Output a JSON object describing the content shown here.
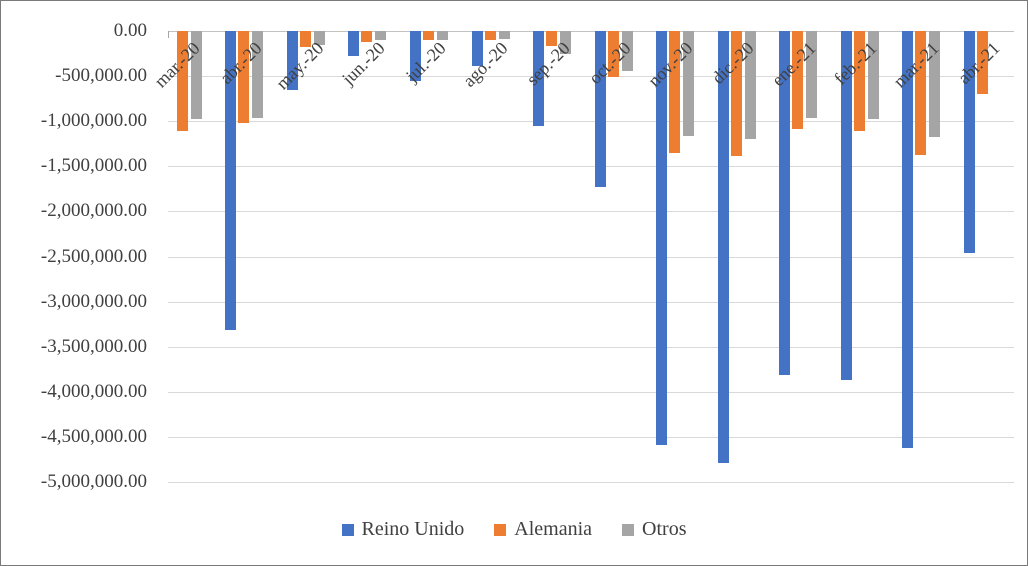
{
  "chart_data": {
    "type": "bar",
    "orientation": "vertical-negative",
    "categories": [
      "mar.-20",
      "abr.-20",
      "may.-20",
      "jun.-20",
      "jul.-20",
      "ago.-20",
      "sep.-20",
      "oct.-20",
      "nov.-20",
      "dic.-20",
      "ene.-21",
      "feb.-21",
      "mar.-21",
      "abr.-21"
    ],
    "series": [
      {
        "name": "Reino Unido",
        "color": "#4472C4",
        "values": [
          0,
          -3320000,
          -650000,
          -280000,
          -550000,
          -390000,
          -1050000,
          -1730000,
          -4590000,
          -4790000,
          -3810000,
          -3870000,
          -4620000,
          -2460000
        ]
      },
      {
        "name": "Alemania",
        "color": "#ED7D31",
        "values": [
          -1110000,
          -1020000,
          -180000,
          -120000,
          -105000,
          -100000,
          -170000,
          -510000,
          -1350000,
          -1390000,
          -1090000,
          -1110000,
          -1370000,
          -700000
        ]
      },
      {
        "name": "Otros",
        "color": "#A5A5A5",
        "values": [
          -980000,
          -960000,
          -150000,
          -105000,
          -95000,
          -90000,
          -260000,
          -440000,
          -1160000,
          -1200000,
          -960000,
          -980000,
          -1180000,
          0
        ]
      }
    ],
    "y_axis": {
      "min": -5000000,
      "max": 0,
      "step": 500000,
      "labels": [
        "0.00",
        "-500,000.00",
        "-1,000,000.00",
        "-1,500,000.00",
        "-2,000,000.00",
        "-2,500,000.00",
        "-3,000,000.00",
        "-3,500,000.00",
        "-4,000,000.00",
        "-4,500,000.00",
        "-5,000,000.00"
      ]
    },
    "legend": {
      "position": "bottom",
      "entries": [
        "Reino Unido",
        "Alemania",
        "Otros"
      ]
    },
    "grid": true,
    "title": "",
    "xlabel": "",
    "ylabel": ""
  },
  "colors": {
    "gridline": "#d9d9d9",
    "axis_text": "#404040",
    "frame_border": "#7a7a7a"
  }
}
